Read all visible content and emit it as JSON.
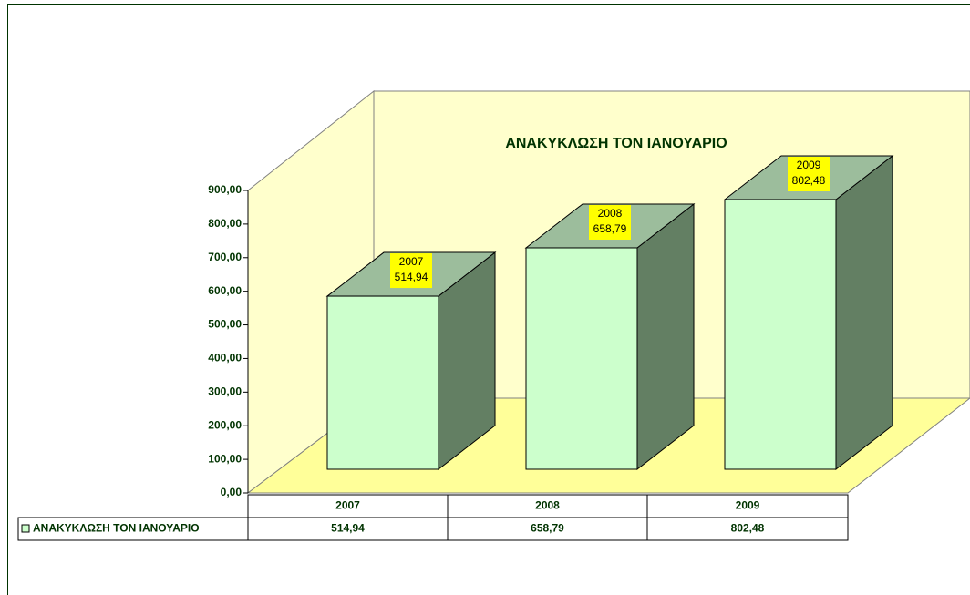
{
  "chart_data": {
    "type": "bar3d",
    "title": "ΑΝΑΚΥΚΛΩΣΗ ΤΟΝ ΙΑΝΟΥΑΡΙΟ",
    "categories": [
      "2007",
      "2008",
      "2009"
    ],
    "series": [
      {
        "name": "ΑΝΑΚΥΚΛΩΣΗ ΤΟΝ ΙΑΝΟΥΑΡΙΟ",
        "color": "#ccffcc",
        "values": [
          514.94,
          658.79,
          802.48
        ],
        "value_labels": [
          "514,94",
          "658,79",
          "802,48"
        ]
      }
    ],
    "ylim": [
      0,
      900
    ],
    "yticks": [
      {
        "value": 0,
        "label": "0,00"
      },
      {
        "value": 100,
        "label": "100,00"
      },
      {
        "value": 200,
        "label": "200,00"
      },
      {
        "value": 300,
        "label": "300,00"
      },
      {
        "value": 400,
        "label": "400,00"
      },
      {
        "value": 500,
        "label": "500,00"
      },
      {
        "value": 600,
        "label": "600,00"
      },
      {
        "value": 700,
        "label": "700,00"
      },
      {
        "value": 800,
        "label": "800,00"
      },
      {
        "value": 900,
        "label": "900,00"
      }
    ],
    "data_table": true
  }
}
